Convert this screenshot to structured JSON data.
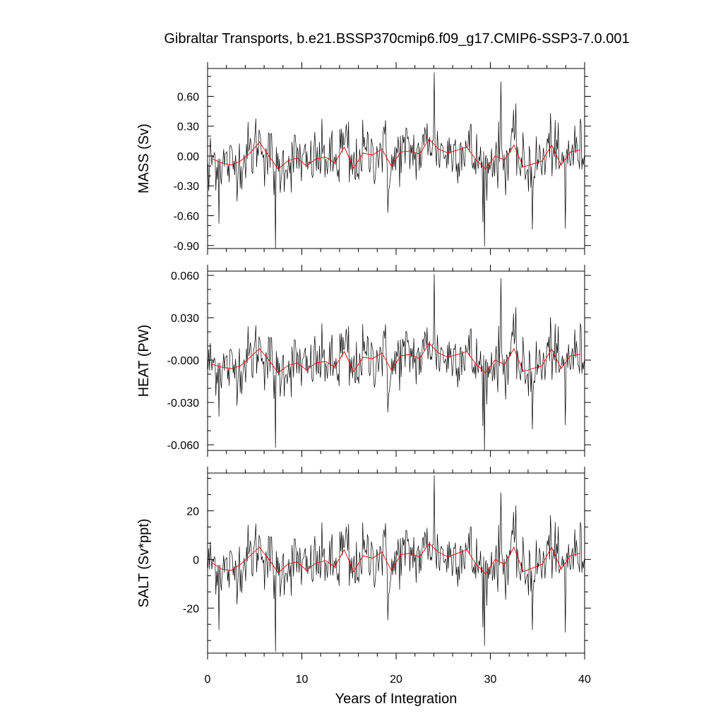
{
  "title": "Gibraltar Transports, b.e21.BSSP370cmip6.f09_g17.CMIP6-SSP3-7.0.001",
  "colors": {
    "monthly_series": "#000000",
    "annual_series": "#ff0000",
    "background": "#ffffff"
  },
  "chart_data": [
    {
      "type": "line",
      "ylabel": "MASS (Sv)",
      "xlabel": "",
      "xlim": [
        0,
        40
      ],
      "ylim": [
        -0.93,
        0.88
      ],
      "x_ticks": [
        0,
        10,
        20,
        30,
        40
      ],
      "y_ticks": [
        0.6,
        0.3,
        0.0,
        -0.3,
        -0.6,
        -0.9
      ],
      "y_tick_labels": [
        "0.60",
        "0.30",
        "0.00",
        "-0.30",
        "-0.60",
        "-0.90"
      ],
      "x_tick_labels": [],
      "annual_mean": [
        -0.03,
        -0.07,
        -0.09,
        -0.05,
        0.03,
        0.14,
        0.0,
        -0.13,
        -0.05,
        -0.02,
        -0.1,
        -0.03,
        -0.01,
        -0.07,
        0.09,
        -0.12,
        0.03,
        0.01,
        0.07,
        -0.1,
        0.04,
        0.05,
        0.02,
        0.17,
        0.07,
        0.03,
        0.06,
        0.09,
        -0.04,
        -0.13,
        0.0,
        -0.04,
        0.11,
        -0.11,
        -0.08,
        -0.05,
        0.11,
        -0.09,
        0.04,
        0.06
      ],
      "spikes": [
        {
          "x": 7.2,
          "y": -0.93
        },
        {
          "x": 29.3,
          "y": -0.91
        },
        {
          "x": 24.0,
          "y": 0.84
        },
        {
          "x": 31.1,
          "y": 0.75
        },
        {
          "x": 0.1,
          "y": -0.35
        },
        {
          "x": 1.2,
          "y": -0.68
        },
        {
          "x": 34.4,
          "y": -0.74
        },
        {
          "x": 37.9,
          "y": -0.73
        },
        {
          "x": 19.1,
          "y": -0.57
        }
      ]
    },
    {
      "type": "line",
      "ylabel": "HEAT (PW)",
      "xlabel": "",
      "xlim": [
        0,
        40
      ],
      "ylim": [
        -0.064,
        0.063
      ],
      "x_ticks": [
        0,
        10,
        20,
        30,
        40
      ],
      "y_ticks": [
        0.06,
        0.03,
        0.0,
        -0.03,
        -0.06
      ],
      "y_tick_labels": [
        "0.060",
        "0.030",
        "-0.000",
        "-0.030",
        "-0.060"
      ],
      "x_tick_labels": [],
      "annual_mean": [
        -0.003,
        -0.005,
        -0.006,
        -0.004,
        0.002,
        0.008,
        0.0,
        -0.009,
        -0.004,
        -0.002,
        -0.007,
        -0.002,
        -0.001,
        -0.005,
        0.006,
        -0.008,
        0.002,
        0.001,
        0.005,
        -0.007,
        0.003,
        0.004,
        0.001,
        0.012,
        0.005,
        0.002,
        0.004,
        0.006,
        -0.003,
        -0.009,
        0.0,
        -0.003,
        0.008,
        -0.008,
        -0.006,
        -0.004,
        0.008,
        -0.006,
        0.003,
        0.004
      ],
      "spikes": [
        {
          "x": 7.2,
          "y": -0.062
        },
        {
          "x": 29.3,
          "y": -0.064
        },
        {
          "x": 24.0,
          "y": 0.061
        },
        {
          "x": 31.1,
          "y": 0.058
        },
        {
          "x": 1.2,
          "y": -0.04
        },
        {
          "x": 34.4,
          "y": -0.049
        },
        {
          "x": 37.9,
          "y": -0.046
        },
        {
          "x": 19.1,
          "y": -0.037
        }
      ]
    },
    {
      "type": "line",
      "ylabel": "SALT (Sv*ppt)",
      "xlabel": "Years of Integration",
      "xlim": [
        0,
        40
      ],
      "ylim": [
        -38.5,
        35.5
      ],
      "x_ticks": [
        0,
        10,
        20,
        30,
        40
      ],
      "y_ticks": [
        20,
        0,
        -20
      ],
      "y_tick_labels": [
        "20",
        "0",
        "-20"
      ],
      "x_tick_labels": [
        "0",
        "10",
        "20",
        "30",
        "40"
      ],
      "annual_mean": [
        -1.5,
        -4.0,
        -4.5,
        -2.0,
        1.5,
        5.0,
        0.0,
        -5.5,
        -2.0,
        -1.0,
        -4.5,
        -1.5,
        -0.5,
        -3.0,
        4.0,
        -5.0,
        1.5,
        0.5,
        3.0,
        -4.5,
        2.0,
        2.5,
        1.0,
        6.5,
        3.0,
        1.0,
        2.5,
        4.0,
        -2.0,
        -6.0,
        0.0,
        -2.0,
        5.0,
        -5.0,
        -3.5,
        -2.0,
        5.0,
        -4.0,
        1.5,
        2.5
      ],
      "spikes": [
        {
          "x": 7.2,
          "y": -38.0
        },
        {
          "x": 29.3,
          "y": -35.5
        },
        {
          "x": 24.0,
          "y": 34.5
        },
        {
          "x": 31.1,
          "y": 27.5
        },
        {
          "x": 1.2,
          "y": -29.0
        },
        {
          "x": 34.4,
          "y": -29.0
        },
        {
          "x": 37.9,
          "y": -30.0
        },
        {
          "x": 19.1,
          "y": -25.0
        }
      ]
    }
  ]
}
